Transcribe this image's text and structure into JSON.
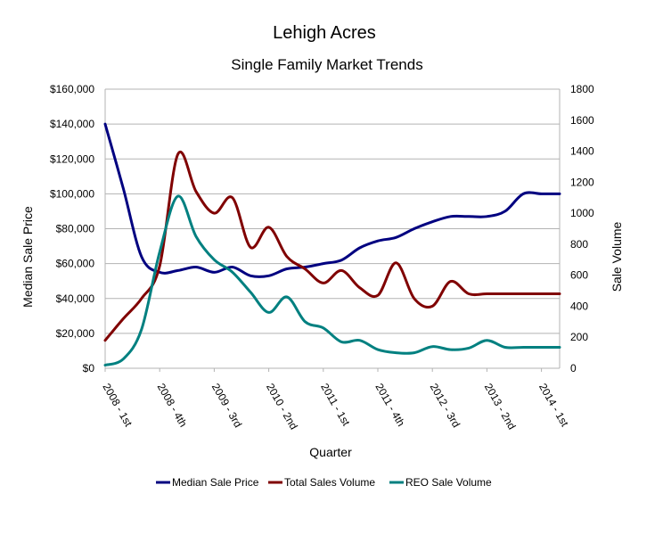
{
  "chart_data": {
    "type": "line",
    "title": "Lehigh Acres",
    "subtitle": "Single Family Market Trends",
    "xlabel": "Quarter",
    "ylabel": "Median Sale Price",
    "y2label": "Sale Volume",
    "ylim": [
      0,
      160000
    ],
    "y2lim": [
      0,
      1800
    ],
    "y_ticks": [
      "$0",
      "$20,000",
      "$40,000",
      "$60,000",
      "$80,000",
      "$100,000",
      "$120,000",
      "$140,000",
      "$160,000"
    ],
    "y2_ticks": [
      "0",
      "200",
      "400",
      "600",
      "800",
      "1000",
      "1200",
      "1400",
      "1600",
      "1800"
    ],
    "x_tick_labels": [
      {
        "index": 0,
        "label": "2008 - 1st"
      },
      {
        "index": 3,
        "label": "2008 - 4th"
      },
      {
        "index": 6,
        "label": "2009 - 3rd"
      },
      {
        "index": 9,
        "label": "2010 - 2nd"
      },
      {
        "index": 12,
        "label": "2011 - 1st"
      },
      {
        "index": 15,
        "label": "2011 - 4th"
      },
      {
        "index": 18,
        "label": "2012 - 3rd"
      },
      {
        "index": 21,
        "label": "2013 - 2nd"
      },
      {
        "index": 24,
        "label": "2014 - 1st"
      }
    ],
    "categories": [
      "2008 - 1st",
      "2008 - 2nd",
      "2008 - 3rd",
      "2008 - 4th",
      "2009 - 1st",
      "2009 - 2nd",
      "2009 - 3rd",
      "2009 - 4th",
      "2010 - 1st",
      "2010 - 2nd",
      "2010 - 3rd",
      "2010 - 4th",
      "2011 - 1st",
      "2011 - 2nd",
      "2011 - 3rd",
      "2011 - 4th",
      "2012 - 1st",
      "2012 - 2nd",
      "2012 - 3rd",
      "2012 - 4th",
      "2013 - 1st",
      "2013 - 2nd",
      "2013 - 3rd",
      "2013 - 4th",
      "2014 - 1st",
      "2014 - 2nd"
    ],
    "series": [
      {
        "name": "Median Sale Price",
        "axis": "left",
        "color": "#000080",
        "values": [
          140000,
          103000,
          64000,
          55000,
          56000,
          58000,
          55000,
          58000,
          53000,
          53000,
          57000,
          58000,
          60000,
          62000,
          69000,
          73000,
          75000,
          80000,
          84000,
          87000,
          87000,
          87000,
          90000,
          100000,
          100000,
          100000
        ]
      },
      {
        "name": "Total Sales Volume",
        "axis": "right",
        "color": "#800000",
        "values": [
          180,
          320,
          450,
          660,
          1380,
          1140,
          1000,
          1100,
          780,
          910,
          720,
          640,
          550,
          630,
          520,
          470,
          680,
          450,
          400,
          560,
          480,
          480,
          480,
          480,
          480,
          480
        ]
      },
      {
        "name": "REO Sale Volume",
        "axis": "right",
        "color": "#008080",
        "values": [
          20,
          60,
          250,
          750,
          1110,
          850,
          700,
          620,
          490,
          360,
          460,
          300,
          260,
          170,
          180,
          120,
          100,
          100,
          140,
          120,
          130,
          180,
          135,
          135,
          135,
          135
        ]
      }
    ],
    "legend": [
      "Median Sale Price",
      "Total Sales Volume",
      "REO Sale Volume"
    ],
    "legend_position": "bottom",
    "grid": true
  }
}
